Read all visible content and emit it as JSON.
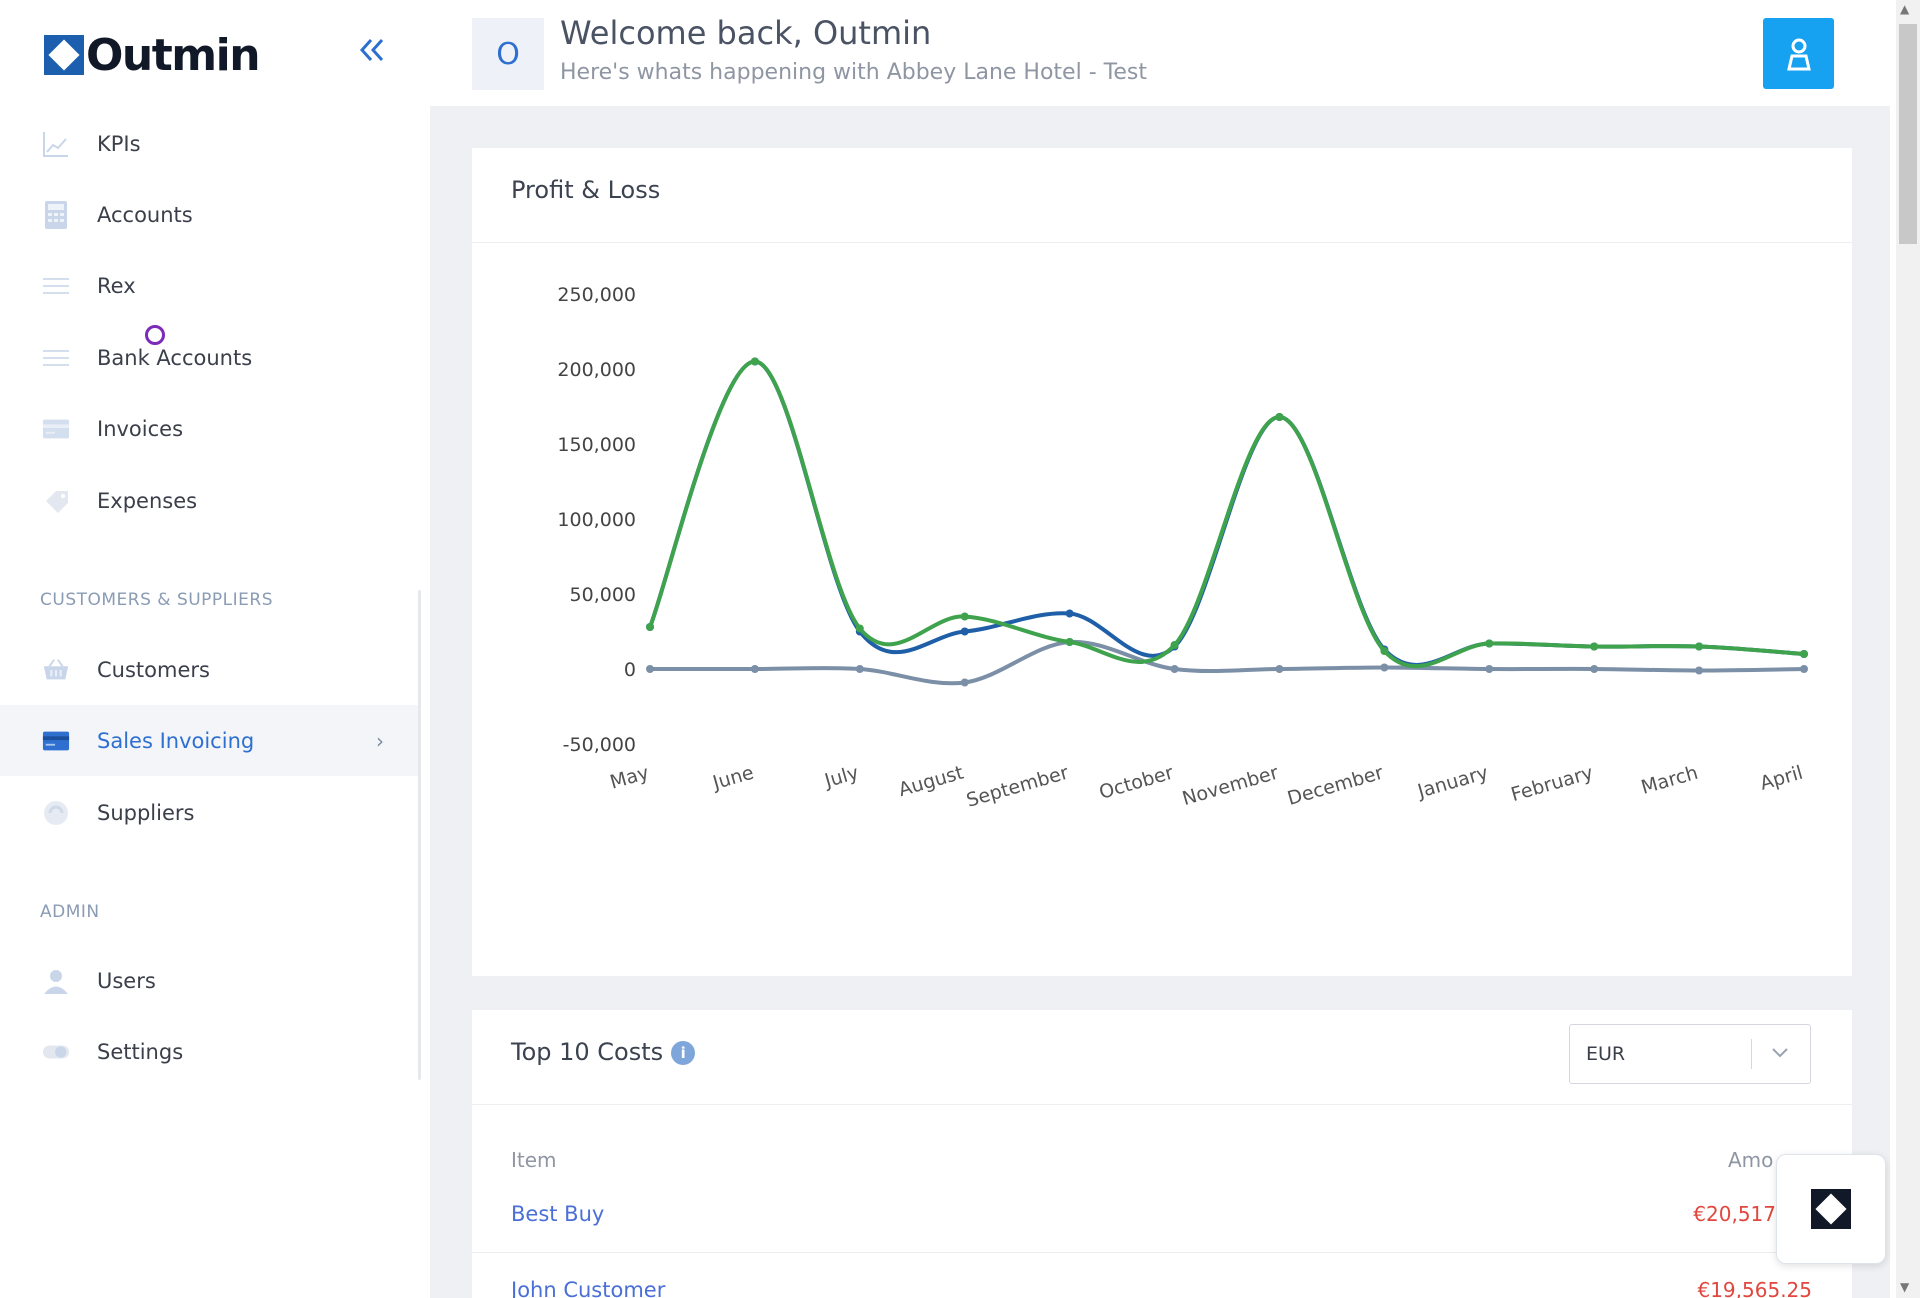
{
  "app": {
    "logo_text": "Outmin"
  },
  "header": {
    "avatar_letter": "O",
    "welcome": "Welcome back, Outmin",
    "subtitle": "Here's whats happening with Abbey Lane Hotel - Test"
  },
  "sidebar": {
    "items": [
      {
        "label": "KPIs",
        "icon": "chart-icon"
      },
      {
        "label": "Accounts",
        "icon": "calculator-icon"
      },
      {
        "label": "Rex",
        "icon": "list-icon"
      },
      {
        "label": "Bank Accounts",
        "icon": "list-icon"
      },
      {
        "label": "Invoices",
        "icon": "invoice-icon"
      },
      {
        "label": "Expenses",
        "icon": "tag-icon"
      }
    ],
    "section_customers": "CUSTOMERS & SUPPLIERS",
    "customer_items": [
      {
        "label": "Customers",
        "icon": "basket-icon"
      },
      {
        "label": "Sales Invoicing",
        "icon": "card-icon",
        "active": true
      },
      {
        "label": "Suppliers",
        "icon": "suppliers-icon"
      }
    ],
    "section_admin": "ADMIN",
    "admin_items": [
      {
        "label": "Users",
        "icon": "user-icon"
      },
      {
        "label": "Settings",
        "icon": "toggle-icon"
      }
    ],
    "active_chevron": "›"
  },
  "pl_card": {
    "title": "Profit & Loss"
  },
  "costs_card": {
    "title": "Top 10 Costs",
    "info": "i",
    "currency": "EUR",
    "col_item": "Item",
    "col_amount": "Amo",
    "rows": [
      {
        "name": "Best Buy",
        "amount": "€20,517"
      },
      {
        "name": "John Customer",
        "amount": "€19,565.25"
      }
    ]
  },
  "colors": {
    "accent": "#2e6fd0",
    "user_button": "#16a2f0",
    "green_series": "#3fa34d",
    "blue_series": "#1f5fa8",
    "gray_series": "#7b8fa6",
    "negative_amount": "#e0473e"
  },
  "chart_data": {
    "type": "line",
    "title": "Profit & Loss",
    "categories": [
      "May",
      "June",
      "July",
      "August",
      "September",
      "October",
      "November",
      "December",
      "January",
      "February",
      "March",
      "April"
    ],
    "ylim": [
      -50000,
      250000
    ],
    "yticks": [
      "250,000",
      "200,000",
      "150,000",
      "100,000",
      "50,000",
      "0",
      "-50,000"
    ],
    "ytick_values": [
      250000,
      200000,
      150000,
      100000,
      50000,
      0,
      -50000
    ],
    "grid": false,
    "series": [
      {
        "color": "#1f5fa8",
        "values": [
          28000,
          205000,
          25000,
          25000,
          37000,
          15000,
          168000,
          13000,
          17000,
          15000,
          15000,
          10000
        ]
      },
      {
        "color": "#7b8fa6",
        "values": [
          0,
          0,
          0,
          -9000,
          18000,
          0,
          0,
          1000,
          0,
          0,
          -1000,
          0
        ]
      },
      {
        "color": "#3fa34d",
        "values": [
          28000,
          205000,
          27000,
          35000,
          18000,
          16000,
          168000,
          12000,
          17000,
          15000,
          15000,
          10000
        ]
      }
    ]
  }
}
